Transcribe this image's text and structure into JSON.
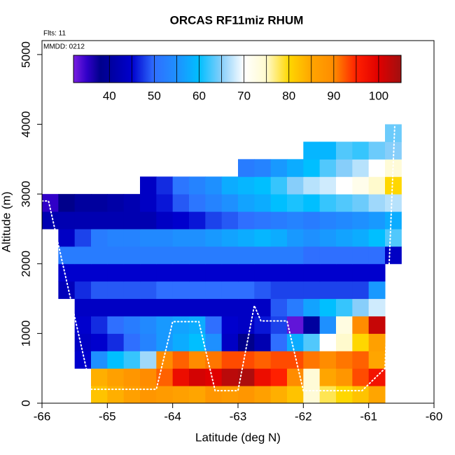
{
  "chart_data": {
    "type": "heatmap",
    "title": "ORCAS RF11miz RHUM",
    "annotations": [
      "Flts: 11",
      "MMDD: 0212"
    ],
    "x_label": "Latitude (deg N)",
    "y_label": "Altitude (m)",
    "xlim": [
      -66,
      -60
    ],
    "xticks": [
      -66,
      -65,
      -64,
      -63,
      -62,
      -61,
      -60
    ],
    "ylim": [
      0,
      5200
    ],
    "yticks": [
      0,
      1000,
      2000,
      3000,
      4000,
      5000
    ],
    "x": [
      -65.875,
      -65.625,
      -65.375,
      -65.125,
      -64.875,
      -64.625,
      -64.375,
      -64.125,
      -63.875,
      -63.625,
      -63.375,
      -63.125,
      -62.875,
      -62.625,
      -62.375,
      -62.125,
      -61.875,
      -61.625,
      -61.375,
      -61.125,
      -60.875,
      -60.625
    ],
    "y": [
      125,
      375,
      625,
      875,
      1125,
      1375,
      1625,
      1875,
      2125,
      2375,
      2625,
      2875,
      3125,
      3375,
      3625,
      3875
    ],
    "values": [
      [
        null,
        null,
        null,
        82,
        84,
        86,
        88,
        87,
        86,
        85,
        88,
        87,
        88,
        86,
        84,
        82,
        74,
        78,
        80,
        82,
        85,
        null
      ],
      [
        null,
        null,
        null,
        84,
        86,
        88,
        90,
        92,
        98,
        101,
        100,
        103,
        104,
        98,
        95,
        90,
        74,
        85,
        88,
        93,
        97,
        null
      ],
      [
        null,
        null,
        45,
        55,
        60,
        62,
        66,
        90,
        92,
        90,
        91,
        93,
        93,
        92,
        93,
        93,
        91,
        90,
        91,
        92,
        85,
        null
      ],
      [
        null,
        null,
        44,
        45,
        47,
        50,
        53,
        56,
        58,
        60,
        55,
        44,
        38,
        42,
        50,
        58,
        63,
        70,
        75,
        80,
        86,
        null
      ],
      [
        null,
        null,
        45,
        47,
        50,
        52,
        54,
        56,
        57,
        58,
        50,
        45,
        44,
        46,
        48,
        33,
        40,
        55,
        73,
        90,
        102,
        null
      ],
      [
        null,
        null,
        44,
        44,
        44,
        44,
        44,
        44,
        44,
        44,
        44,
        44,
        44,
        44,
        49,
        52,
        57,
        60,
        62,
        65,
        68,
        null
      ],
      [
        null,
        43,
        47,
        49,
        49,
        49,
        49,
        50,
        50,
        50,
        50,
        50,
        50,
        49,
        48,
        48,
        48,
        48,
        48,
        48,
        56,
        null
      ],
      [
        null,
        45,
        45,
        45,
        45,
        45,
        45,
        45,
        45,
        45,
        45,
        45,
        45,
        45,
        45,
        45,
        45,
        45,
        45,
        45,
        45,
        null
      ],
      [
        null,
        52,
        52,
        52,
        52,
        52,
        52,
        52,
        52,
        52,
        52,
        52,
        52,
        52,
        52,
        52,
        50,
        50,
        50,
        50,
        50,
        44
      ],
      [
        null,
        44,
        48,
        52,
        53,
        53,
        54,
        54,
        55,
        55,
        56,
        57,
        58,
        59,
        58,
        56,
        55,
        56,
        57,
        58,
        60,
        63
      ],
      [
        42,
        42,
        42,
        42,
        42,
        42,
        42,
        44,
        45,
        46,
        48,
        49,
        50,
        51,
        52,
        53,
        52,
        53,
        54,
        55,
        56,
        58
      ],
      [
        35,
        38,
        40,
        40,
        41,
        42,
        44,
        46,
        49,
        51,
        53,
        55,
        57,
        58,
        60,
        61,
        60,
        62,
        63,
        64,
        66,
        67
      ],
      [
        null,
        null,
        null,
        null,
        null,
        null,
        44,
        47,
        51,
        53,
        55,
        58,
        59,
        60,
        62,
        65,
        67,
        68,
        70,
        72,
        75,
        80
      ],
      [
        null,
        null,
        null,
        null,
        null,
        null,
        null,
        null,
        null,
        null,
        null,
        null,
        52,
        53,
        56,
        58,
        60,
        63,
        65,
        67,
        70,
        74
      ],
      [
        null,
        null,
        null,
        null,
        null,
        null,
        null,
        null,
        null,
        null,
        null,
        null,
        null,
        null,
        null,
        null,
        59,
        59,
        63,
        62,
        64,
        65
      ],
      [
        null,
        null,
        null,
        null,
        null,
        null,
        null,
        null,
        null,
        null,
        null,
        null,
        null,
        null,
        null,
        null,
        null,
        null,
        null,
        null,
        null,
        64
      ]
    ],
    "colorscale": [
      [
        32,
        "#7a1fe0"
      ],
      [
        35,
        "#3000c8"
      ],
      [
        38,
        "#00008b"
      ],
      [
        45,
        "#0000cd"
      ],
      [
        50,
        "#2f6fff"
      ],
      [
        55,
        "#1e90ff"
      ],
      [
        60,
        "#00bfff"
      ],
      [
        65,
        "#87cefa"
      ],
      [
        70,
        "#ffffff"
      ],
      [
        75,
        "#fffacd"
      ],
      [
        80,
        "#ffd700"
      ],
      [
        85,
        "#ffa500"
      ],
      [
        90,
        "#ff8c00"
      ],
      [
        95,
        "#ff2000"
      ],
      [
        100,
        "#e00000"
      ],
      [
        105,
        "#a01010"
      ]
    ],
    "clim": [
      32,
      105
    ],
    "cticks": [
      40,
      50,
      60,
      70,
      80,
      90,
      100
    ],
    "colorbar_breaks": [
      40,
      45,
      50,
      55,
      60,
      65,
      70,
      75,
      80,
      85,
      90,
      95,
      100
    ],
    "track": {
      "color": "#ffffff",
      "x": [
        -66,
        -65.9,
        -65.25,
        -64.25,
        -64.0,
        -63.6,
        -63.35,
        -63.0,
        -62.75,
        -62.65,
        -62.25,
        -62.0,
        -61.1,
        -60.75,
        -60.6
      ],
      "y": [
        2900,
        2900,
        200,
        200,
        1170,
        1170,
        180,
        180,
        1400,
        1180,
        1180,
        180,
        180,
        500,
        4000
      ]
    }
  }
}
